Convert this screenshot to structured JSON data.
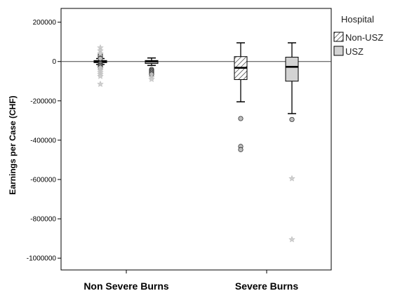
{
  "chart_data": {
    "type": "boxplot",
    "ylabel": "Earnings per Case (CHF)",
    "xlabel": "",
    "ylim": [
      -1060000,
      270000
    ],
    "yticks": [
      200000,
      0,
      -200000,
      -400000,
      -600000,
      -800000,
      -1000000
    ],
    "ytick_labels": [
      "200000",
      "0",
      "-200000",
      "-400000",
      "-600000",
      "-800000",
      "-1000000"
    ],
    "reference_line": 0,
    "categories": [
      "Non Severe Burns",
      "Severe Burns"
    ],
    "legend": {
      "title": "Hospital",
      "position": "right",
      "entries": [
        {
          "name": "Non-USZ",
          "pattern": "hatched"
        },
        {
          "name": "USZ",
          "pattern": "solid",
          "color": "#d3d3d3"
        }
      ]
    },
    "series": [
      {
        "name": "Non-USZ",
        "pattern": "hatched",
        "boxes": [
          {
            "category": "Non Severe Burns",
            "whisker_low": -15000,
            "q1": -5000,
            "median": 0,
            "q3": 5000,
            "whisker_high": 15000,
            "outliers": [
              35000,
              30000,
              25000,
              20000,
              15000,
              -10000,
              -15000,
              -20000,
              -25000,
              -30000
            ],
            "extremes": [
              70000,
              55000,
              40000,
              -35000,
              -45000,
              -55000,
              -65000,
              -75000,
              -115000
            ]
          },
          {
            "category": "Severe Burns",
            "whisker_low": -205000,
            "q1": -92000,
            "median": -32000,
            "q3": 25000,
            "whisker_high": 95000,
            "outliers": [
              -290000,
              -432000,
              -448000
            ],
            "extremes": []
          }
        ]
      },
      {
        "name": "USZ",
        "pattern": "solid",
        "color": "#d3d3d3",
        "boxes": [
          {
            "category": "Non Severe Burns",
            "whisker_low": -20000,
            "q1": -10000,
            "median": 0,
            "q3": 5000,
            "whisker_high": 18000,
            "outliers": [
              -40000,
              -45000,
              -50000,
              -55000,
              -60000,
              -65000
            ],
            "extremes": [
              -80000,
              -90000
            ]
          },
          {
            "category": "Severe Burns",
            "whisker_low": -265000,
            "q1": -100000,
            "median": -27000,
            "q3": 22000,
            "whisker_high": 95000,
            "outliers": [
              -295000
            ],
            "extremes": [
              -595000,
              -905000
            ]
          }
        ]
      }
    ]
  }
}
